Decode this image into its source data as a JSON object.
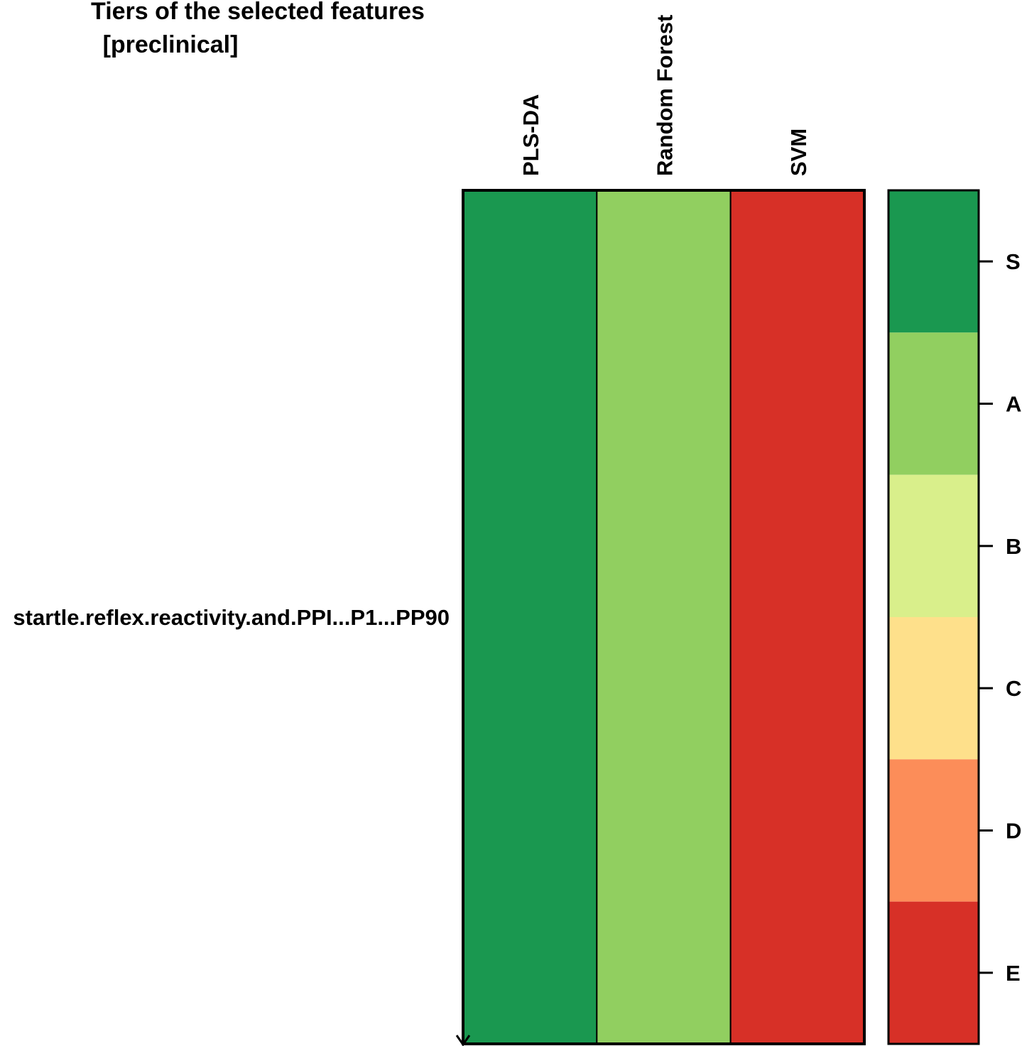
{
  "chart_data": {
    "type": "heatmap",
    "title": "Tiers of the selected features",
    "subtitle": "[preclinical]",
    "columns": [
      "PLS-DA",
      "Random Forest",
      "SVM"
    ],
    "rows": [
      "startle.reflex.reactivity.and.PPI...P1...PP90"
    ],
    "cells": [
      [
        "S",
        "A",
        "E"
      ]
    ],
    "legend": {
      "position": "right",
      "tiers": [
        "S",
        "A",
        "B",
        "C",
        "D",
        "E"
      ],
      "colors": {
        "S": "#1a9850",
        "A": "#91cf60",
        "B": "#d9ef8b",
        "C": "#fee08b",
        "D": "#fc8d59",
        "E": "#d73027"
      }
    }
  }
}
